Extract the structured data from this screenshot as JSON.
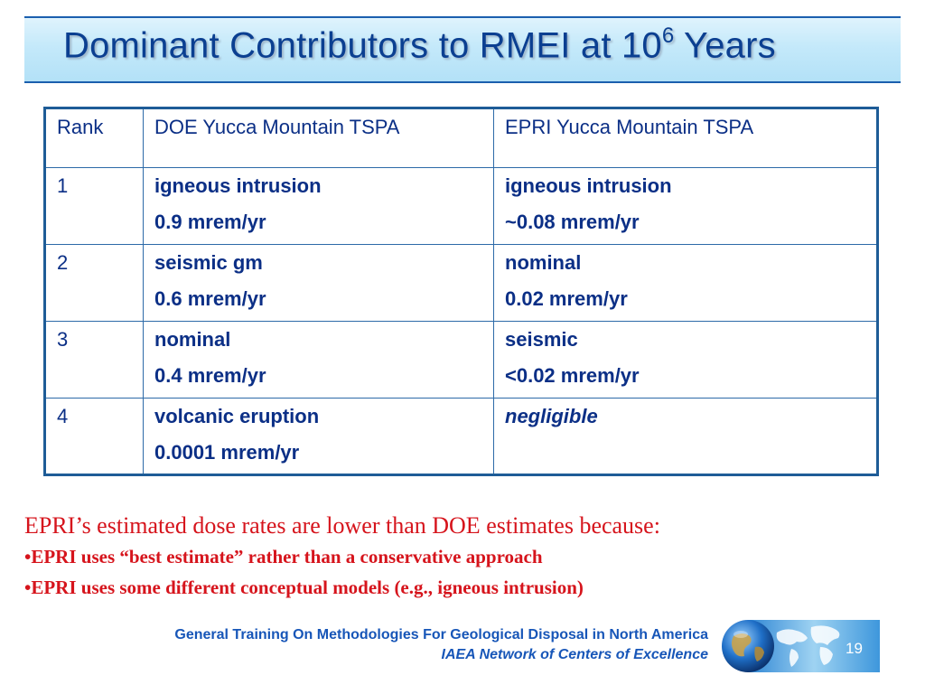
{
  "slide": {
    "title_main": "Dominant Contributors to RMEI at 10",
    "title_sup": "6",
    "title_end": " Years"
  },
  "table": {
    "headers": [
      "Rank",
      "DOE Yucca Mountain TSPA",
      "EPRI Yucca Mountain TSPA"
    ],
    "rows": [
      {
        "rank": "1",
        "doe_name": "igneous intrusion",
        "doe_dose": "0.9 mrem/yr",
        "epri_name": "igneous intrusion",
        "epri_dose": "~0.08 mrem/yr"
      },
      {
        "rank": "2",
        "doe_name": "seismic gm",
        "doe_dose": "0.6 mrem/yr",
        "epri_name": "nominal",
        "epri_dose": "0.02 mrem/yr"
      },
      {
        "rank": "3",
        "doe_name": "nominal",
        "doe_dose": "0.4 mrem/yr",
        "epri_name": "seismic",
        "epri_dose": "<0.02 mrem/yr"
      },
      {
        "rank": "4",
        "doe_name": "volcanic eruption",
        "doe_dose": "0.0001 mrem/yr",
        "epri_name": "negligible",
        "epri_dose": ""
      }
    ]
  },
  "note": {
    "lead": "EPRI’s estimated dose rates are lower than DOE estimates because:",
    "bullets": [
      "•EPRI uses “best estimate” rather than a conservative approach",
      "•EPRI uses some different conceptual models (e.g., igneous intrusion)"
    ]
  },
  "footer": {
    "line1": "General Training On Methodologies For Geological Disposal in North America",
    "line2": "IAEA Network of Centers of Excellence",
    "page": "19"
  },
  "colors": {
    "title": "#0b3f91",
    "table_text": "#0b2f86",
    "note": "#d6141c",
    "footer": "#1756b8"
  },
  "icons": {
    "logo": "globe-world-map-logo"
  }
}
